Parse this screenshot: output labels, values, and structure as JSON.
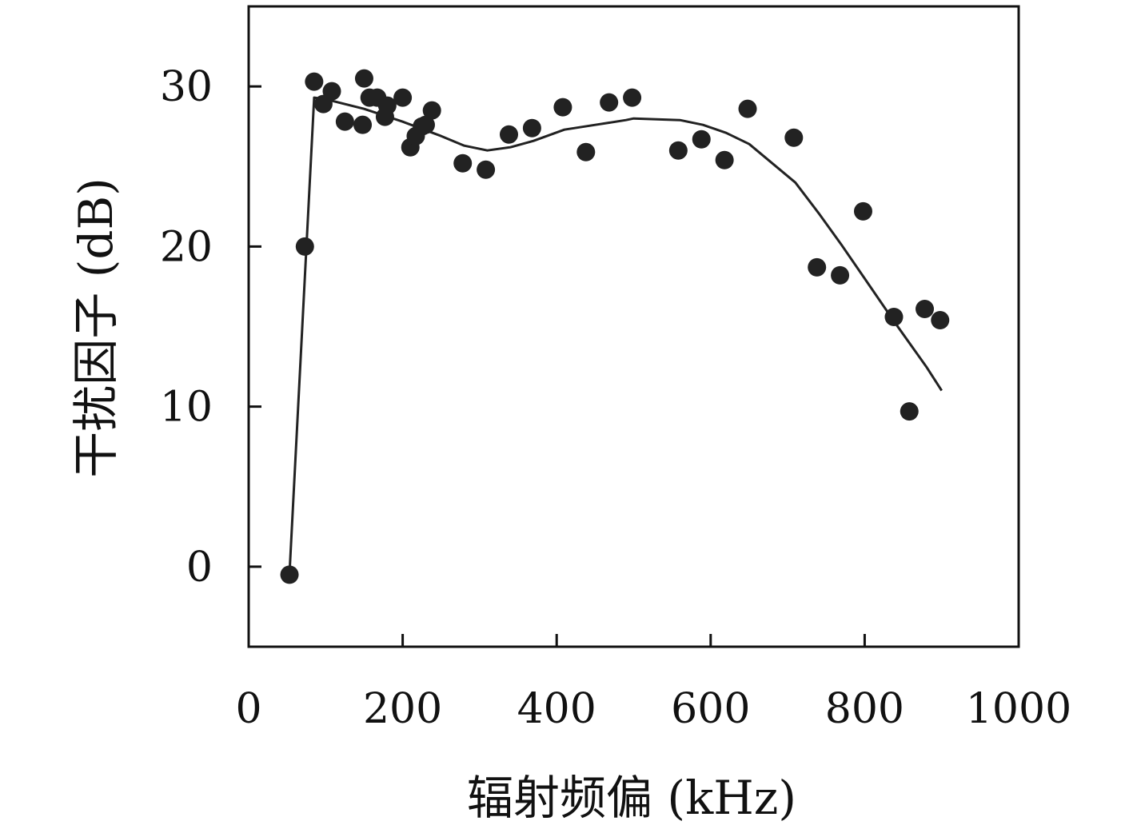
{
  "chart_data": {
    "type": "scatter",
    "xlabel": "辐射频偏 (kHz)",
    "ylabel": "干扰因子 (dB)",
    "xlim": [
      0,
      1000
    ],
    "ylim": [
      -5,
      35
    ],
    "x_ticks": [
      0,
      200,
      400,
      600,
      800,
      1000
    ],
    "y_ticks": [
      0,
      10,
      20,
      30
    ],
    "x_tick_labels": [
      "0",
      "200",
      "400",
      "600",
      "800",
      "1000"
    ],
    "y_tick_labels": [
      "0",
      "10",
      "20",
      "30"
    ],
    "grid": false,
    "series": [
      {
        "kind": "points",
        "x": [
          53,
          73,
          85,
          97,
          108,
          125,
          148,
          150,
          157,
          167,
          177,
          180,
          200,
          210,
          217,
          225,
          230,
          238,
          278,
          308,
          338,
          368,
          408,
          438,
          468,
          498,
          558,
          588,
          618,
          648,
          708,
          738,
          768,
          798,
          838,
          858,
          878,
          898
        ],
        "y": [
          -0.5,
          20.0,
          30.3,
          28.9,
          29.7,
          27.8,
          27.6,
          30.5,
          29.3,
          29.3,
          28.1,
          28.8,
          29.3,
          26.2,
          26.9,
          27.5,
          27.6,
          28.5,
          25.2,
          24.8,
          27.0,
          27.4,
          28.7,
          25.9,
          29.0,
          29.3,
          26.0,
          26.7,
          25.4,
          28.6,
          26.8,
          18.7,
          18.2,
          22.2,
          15.6,
          9.7,
          16.1,
          15.4
        ]
      },
      {
        "kind": "line",
        "x": [
          53,
          85,
          100,
          150,
          200,
          250,
          280,
          310,
          340,
          370,
          410,
          450,
          490,
          500,
          560,
          590,
          620,
          650,
          710,
          740,
          770,
          800,
          840,
          880,
          900
        ],
        "y": [
          -0.5,
          29.3,
          29.2,
          28.6,
          27.8,
          26.9,
          26.3,
          26.0,
          26.2,
          26.6,
          27.3,
          27.6,
          27.9,
          28.0,
          27.9,
          27.6,
          27.1,
          26.4,
          24.0,
          22.1,
          20.1,
          18.0,
          15.2,
          12.5,
          11.0
        ]
      }
    ]
  }
}
